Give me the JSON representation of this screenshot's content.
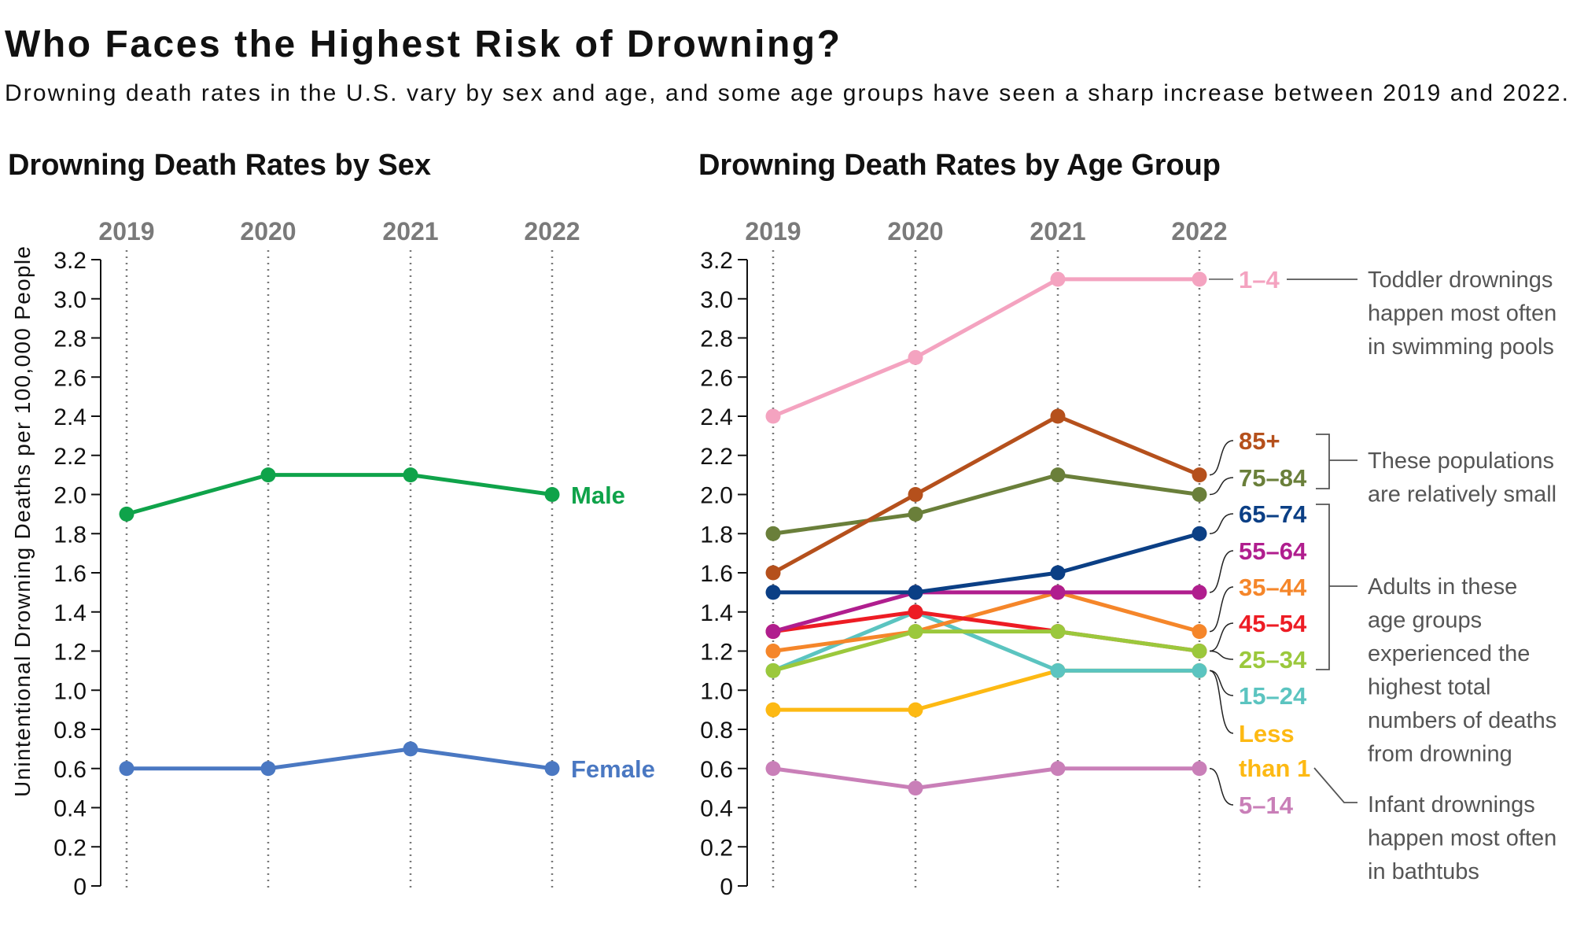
{
  "title": "Who Faces the Highest Risk of Drowning?",
  "subtitle": "Drowning death rates in the U.S. vary by sex and age, and some age groups have seen a sharp increase between 2019 and 2022.",
  "chart_data": [
    {
      "type": "line",
      "title": "Drowning Death Rates by Sex",
      "ylabel": "Unintentional Drowning Deaths per 100,000 People",
      "x": [
        "2019",
        "2020",
        "2021",
        "2022"
      ],
      "ylim": [
        0,
        3.2
      ],
      "yticks": [
        "0",
        "0.2",
        "0.4",
        "0.6",
        "0.8",
        "1.0",
        "1.2",
        "1.4",
        "1.6",
        "1.8",
        "2.0",
        "2.2",
        "2.4",
        "2.6",
        "2.8",
        "3.0",
        "3.2"
      ],
      "grid": "vertical dotted",
      "series": [
        {
          "name": "Male",
          "color": "#0FA34A",
          "values": [
            1.9,
            2.1,
            2.1,
            2.0
          ]
        },
        {
          "name": "Female",
          "color": "#4A78C2",
          "values": [
            0.6,
            0.6,
            0.7,
            0.6
          ]
        }
      ]
    },
    {
      "type": "line",
      "title": "Drowning Death Rates by Age Group",
      "x": [
        "2019",
        "2020",
        "2021",
        "2022"
      ],
      "ylim": [
        0,
        3.2
      ],
      "yticks": [
        "0",
        "0.2",
        "0.4",
        "0.6",
        "0.8",
        "1.0",
        "1.2",
        "1.4",
        "1.6",
        "1.8",
        "2.0",
        "2.2",
        "2.4",
        "2.6",
        "2.8",
        "3.0",
        "3.2"
      ],
      "grid": "vertical dotted",
      "series": [
        {
          "name": "1–4",
          "color": "#F4A3C0",
          "values": [
            2.4,
            2.7,
            3.1,
            3.1
          ]
        },
        {
          "name": "5–14",
          "color": "#C97FB8",
          "values": [
            0.6,
            0.5,
            0.6,
            0.6
          ]
        },
        {
          "name": "Less than 1",
          "label_lines": [
            "Less",
            "than 1"
          ],
          "color": "#FDB913",
          "values": [
            0.9,
            0.9,
            1.1,
            1.1
          ]
        },
        {
          "name": "15–24",
          "color": "#5BC4C0",
          "values": [
            1.1,
            1.4,
            1.1,
            1.1
          ]
        },
        {
          "name": "35–44",
          "color": "#F5862A",
          "values": [
            1.2,
            1.3,
            1.5,
            1.3
          ]
        },
        {
          "name": "45–54",
          "color": "#ED1C24",
          "values": [
            1.3,
            1.4,
            1.3,
            1.2
          ]
        },
        {
          "name": "25–34",
          "color": "#9BC83C",
          "values": [
            1.1,
            1.3,
            1.3,
            1.2
          ]
        },
        {
          "name": "55–64",
          "color": "#B01E8E",
          "values": [
            1.3,
            1.5,
            1.5,
            1.5
          ]
        },
        {
          "name": "65–74",
          "color": "#0B3F85",
          "values": [
            1.5,
            1.5,
            1.6,
            1.8
          ]
        },
        {
          "name": "75–84",
          "color": "#6A7F3A",
          "values": [
            1.8,
            1.9,
            2.1,
            2.0
          ]
        },
        {
          "name": "85+",
          "color": "#B5501C",
          "values": [
            1.6,
            2.0,
            2.4,
            2.1
          ]
        }
      ],
      "annotations": [
        {
          "lines": [
            "Toddler drownings",
            "happen most often",
            "in swimming pools"
          ]
        },
        {
          "lines": [
            "These populations",
            "are relatively small"
          ]
        },
        {
          "lines": [
            "Adults in these",
            "age groups",
            "experienced the",
            "highest total",
            "numbers of deaths",
            "from drowning"
          ]
        },
        {
          "lines": [
            "Infant drownings",
            "happen most often",
            "in bathtubs"
          ]
        }
      ]
    }
  ]
}
